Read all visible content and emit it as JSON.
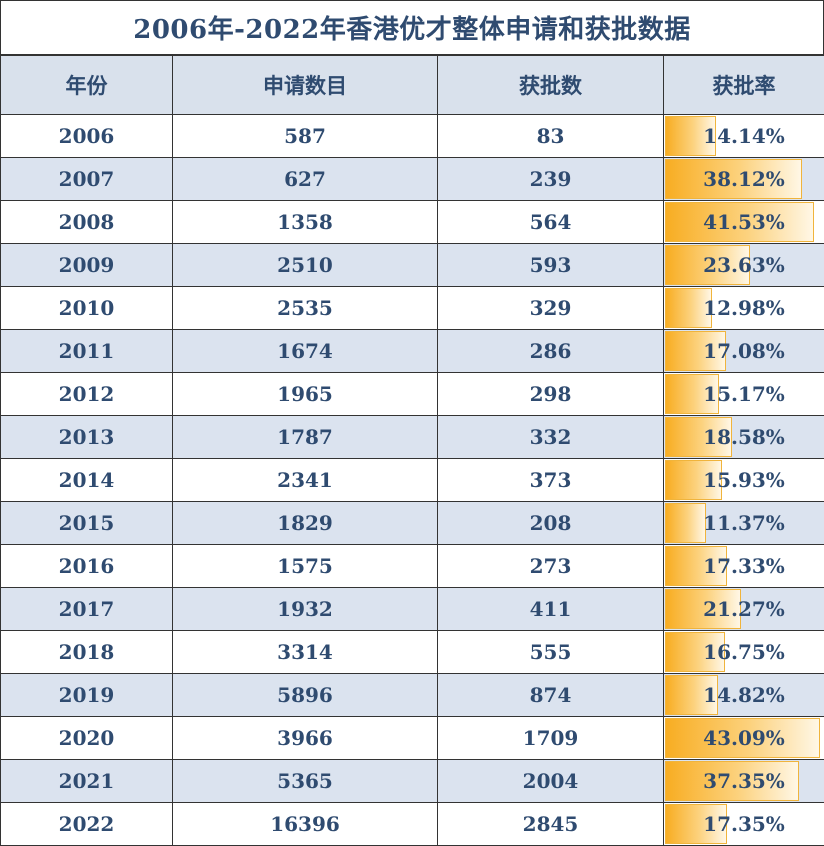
{
  "title": "2006年-2022年香港优才整体申请和获批数据",
  "headers": [
    "年份",
    "申请数目",
    "获批数",
    "获批率"
  ],
  "rows": [
    {
      "year": "2006",
      "applications": "587",
      "approved": "83",
      "rate": "14.14%",
      "rate_value": 14.14
    },
    {
      "year": "2007",
      "applications": "627",
      "approved": "239",
      "rate": "38.12%",
      "rate_value": 38.12
    },
    {
      "year": "2008",
      "applications": "1358",
      "approved": "564",
      "rate": "41.53%",
      "rate_value": 41.53
    },
    {
      "year": "2009",
      "applications": "2510",
      "approved": "593",
      "rate": "23.63%",
      "rate_value": 23.63
    },
    {
      "year": "2010",
      "applications": "2535",
      "approved": "329",
      "rate": "12.98%",
      "rate_value": 12.98
    },
    {
      "year": "2011",
      "applications": "1674",
      "approved": "286",
      "rate": "17.08%",
      "rate_value": 17.08
    },
    {
      "year": "2012",
      "applications": "1965",
      "approved": "298",
      "rate": "15.17%",
      "rate_value": 15.17
    },
    {
      "year": "2013",
      "applications": "1787",
      "approved": "332",
      "rate": "18.58%",
      "rate_value": 18.58
    },
    {
      "year": "2014",
      "applications": "2341",
      "approved": "373",
      "rate": "15.93%",
      "rate_value": 15.93
    },
    {
      "year": "2015",
      "applications": "1829",
      "approved": "208",
      "rate": "11.37%",
      "rate_value": 11.37
    },
    {
      "year": "2016",
      "applications": "1575",
      "approved": "273",
      "rate": "17.33%",
      "rate_value": 17.33
    },
    {
      "year": "2017",
      "applications": "1932",
      "approved": "411",
      "rate": "21.27%",
      "rate_value": 21.27
    },
    {
      "year": "2018",
      "applications": "3314",
      "approved": "555",
      "rate": "16.75%",
      "rate_value": 16.75
    },
    {
      "year": "2019",
      "applications": "5896",
      "approved": "874",
      "rate": "14.82%",
      "rate_value": 14.82
    },
    {
      "year": "2020",
      "applications": "3966",
      "approved": "1709",
      "rate": "43.09%",
      "rate_value": 43.09
    },
    {
      "year": "2021",
      "applications": "5365",
      "approved": "2004",
      "rate": "37.35%",
      "rate_value": 37.35
    },
    {
      "year": "2022",
      "applications": "16396",
      "approved": "2845",
      "rate": "17.35%",
      "rate_value": 17.35
    }
  ],
  "colors": {
    "text": "#2f4b70",
    "header_bg": "#d9e1ec",
    "stripe_bg": "#dbe3ef",
    "bar_start": "#f8ad22",
    "bar_end": "#fff7e6"
  }
}
